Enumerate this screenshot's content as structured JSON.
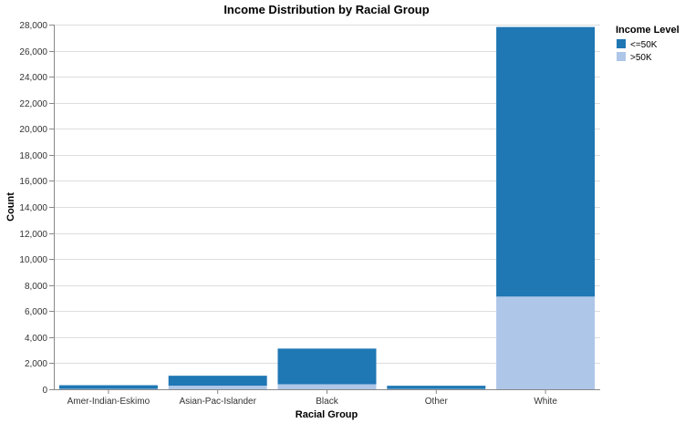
{
  "chart_data": {
    "type": "bar",
    "stacked": true,
    "title": "Income Distribution by Racial Group",
    "xlabel": "Racial Group",
    "ylabel": "Count",
    "categories": [
      "Amer-Indian-Eskimo",
      "Asian-Pac-Islander",
      "Black",
      "Other",
      "White"
    ],
    "series": [
      {
        "name": ">50K",
        "color": "#aec7e8",
        "values": [
          36,
          276,
          387,
          25,
          7117
        ]
      },
      {
        "name": "<=50K",
        "color": "#1f77b4",
        "values": [
          275,
          763,
          2737,
          246,
          20699
        ]
      }
    ],
    "ylim": [
      0,
      28000
    ],
    "yticks": [
      0,
      2000,
      4000,
      6000,
      8000,
      10000,
      12000,
      14000,
      16000,
      18000,
      20000,
      22000,
      24000,
      26000,
      28000
    ],
    "grid": true,
    "legend": {
      "title": "Income Level",
      "placement": "right",
      "entries": [
        {
          "label": "<=50K",
          "color": "#1f77b4"
        },
        {
          "label": ">50K",
          "color": "#aec7e8"
        }
      ]
    }
  }
}
